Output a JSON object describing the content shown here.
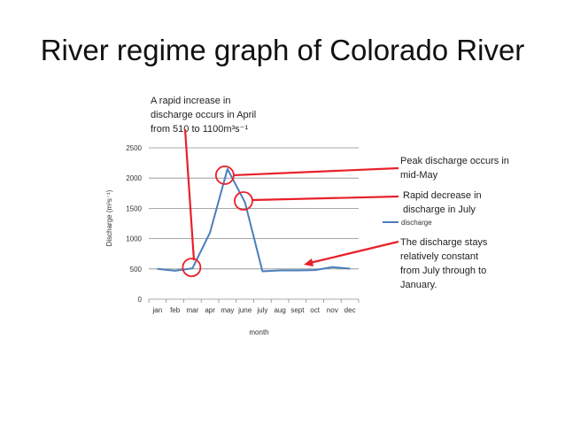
{
  "slide": {
    "title": "River regime graph of Colorado River"
  },
  "annotations": {
    "increase": [
      "A rapid increase in",
      "discharge occurs in April",
      "from 510 to 1100m³s⁻¹"
    ],
    "peak": [
      "Peak discharge occurs in",
      "mid-May"
    ],
    "decrease": [
      "Rapid decrease in",
      "discharge in July"
    ],
    "constant": [
      "The discharge stays",
      "relatively constant",
      "from July through to",
      "January."
    ]
  },
  "colors": {
    "line": "#4a7ebb",
    "annotation": "#e8202a",
    "grid": "#8c8c8c"
  },
  "chart_data": {
    "type": "line",
    "categories": [
      "jan",
      "feb",
      "mar",
      "apr",
      "may",
      "june",
      "july",
      "aug",
      "sept",
      "oct",
      "nov",
      "dec"
    ],
    "series": [
      {
        "name": "discharge",
        "values": [
          500,
          470,
          510,
          1100,
          2150,
          1600,
          460,
          475,
          475,
          480,
          530,
          505
        ]
      }
    ],
    "xlabel": "month",
    "ylabel": "Discharge (m³s⁻¹)",
    "ylim": [
      0,
      2500
    ],
    "yticks": [
      0,
      500,
      1000,
      1500,
      2000,
      2500
    ],
    "grid": true,
    "legend": "right"
  }
}
